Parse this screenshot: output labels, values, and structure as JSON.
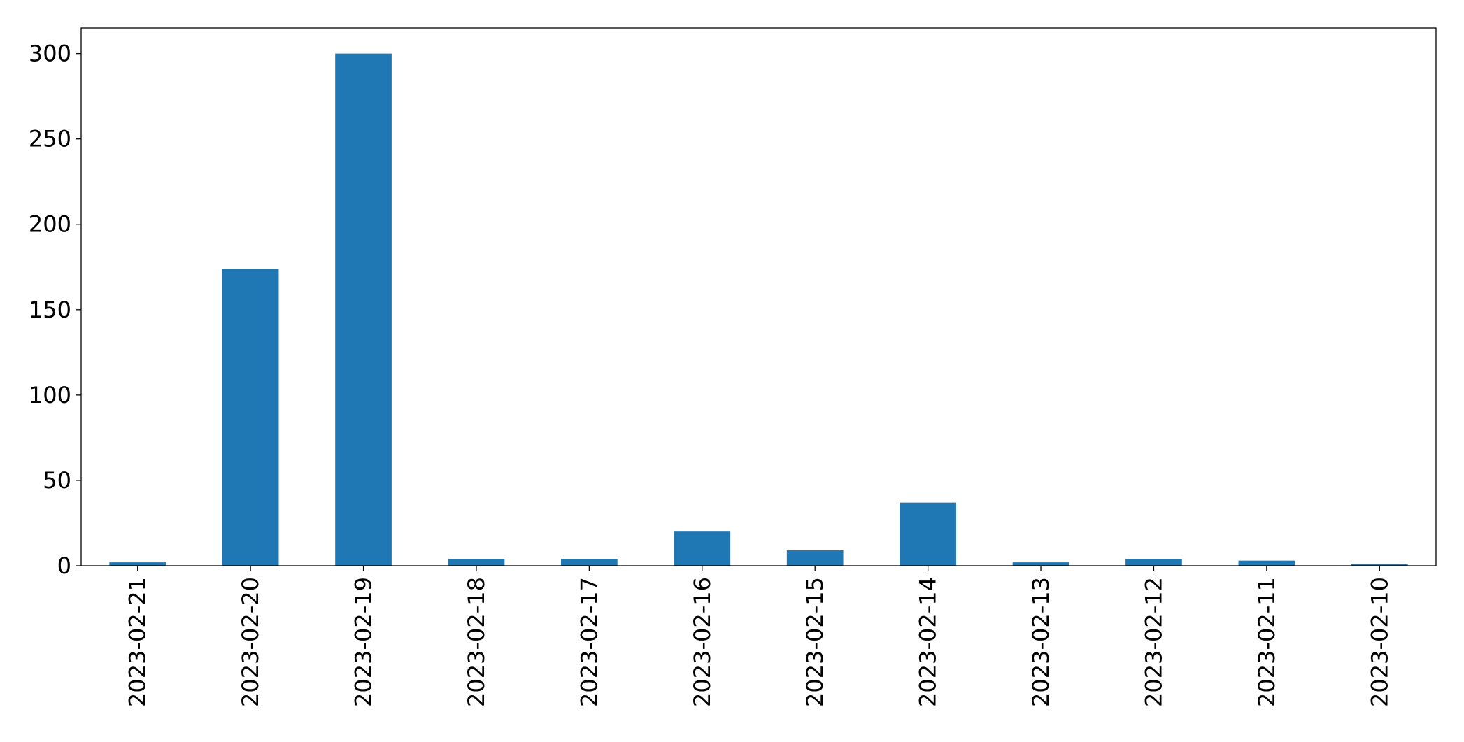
{
  "chart_data": {
    "type": "bar",
    "categories": [
      "2023-02-21",
      "2023-02-20",
      "2023-02-19",
      "2023-02-18",
      "2023-02-17",
      "2023-02-16",
      "2023-02-15",
      "2023-02-14",
      "2023-02-13",
      "2023-02-12",
      "2023-02-11",
      "2023-02-10"
    ],
    "values": [
      2,
      174,
      300,
      4,
      4,
      20,
      9,
      37,
      2,
      4,
      3,
      1
    ],
    "color": "#1f77b4",
    "ylim": [
      0,
      315
    ],
    "yticks": [
      0,
      50,
      100,
      150,
      200,
      250,
      300
    ],
    "grid": false
  }
}
